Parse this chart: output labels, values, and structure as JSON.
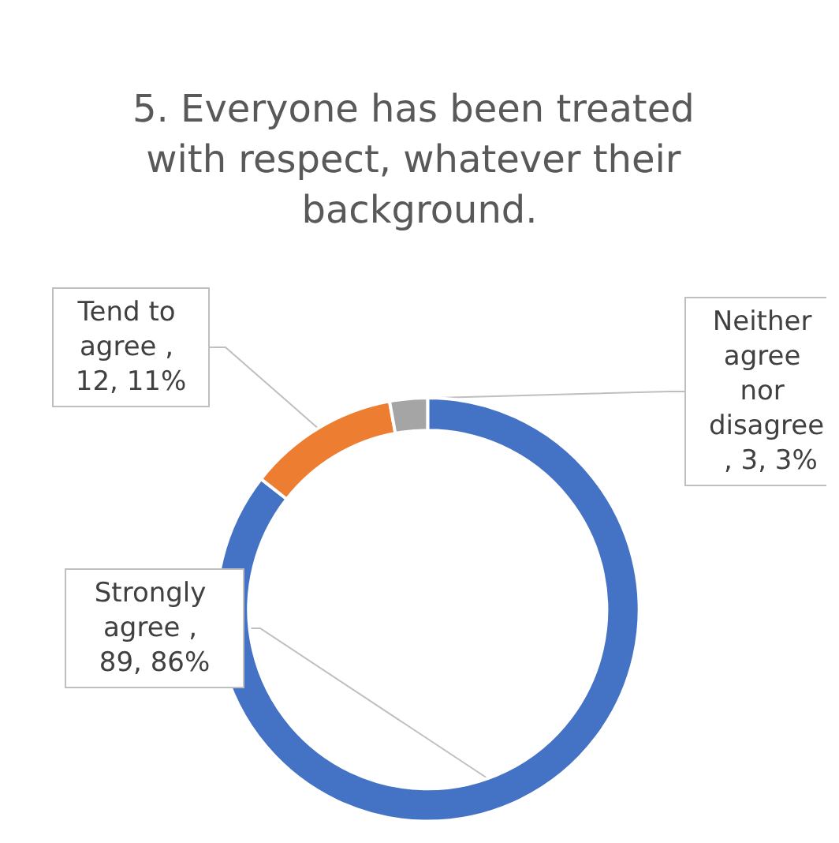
{
  "chart_data": {
    "type": "donut",
    "title": "5. Everyone has been treated with respect, whatever their background.",
    "categories": [
      "Strongly agree",
      "Tend to agree",
      "Neither agree nor disagree"
    ],
    "values": [
      89,
      12,
      3
    ],
    "colors": [
      "#4472c4",
      "#ed7d31",
      "#a5a5a5"
    ],
    "value_labels": [
      ", 89, 86%",
      ", 12, 11%",
      ", 3, 3%"
    ],
    "legend": false
  }
}
